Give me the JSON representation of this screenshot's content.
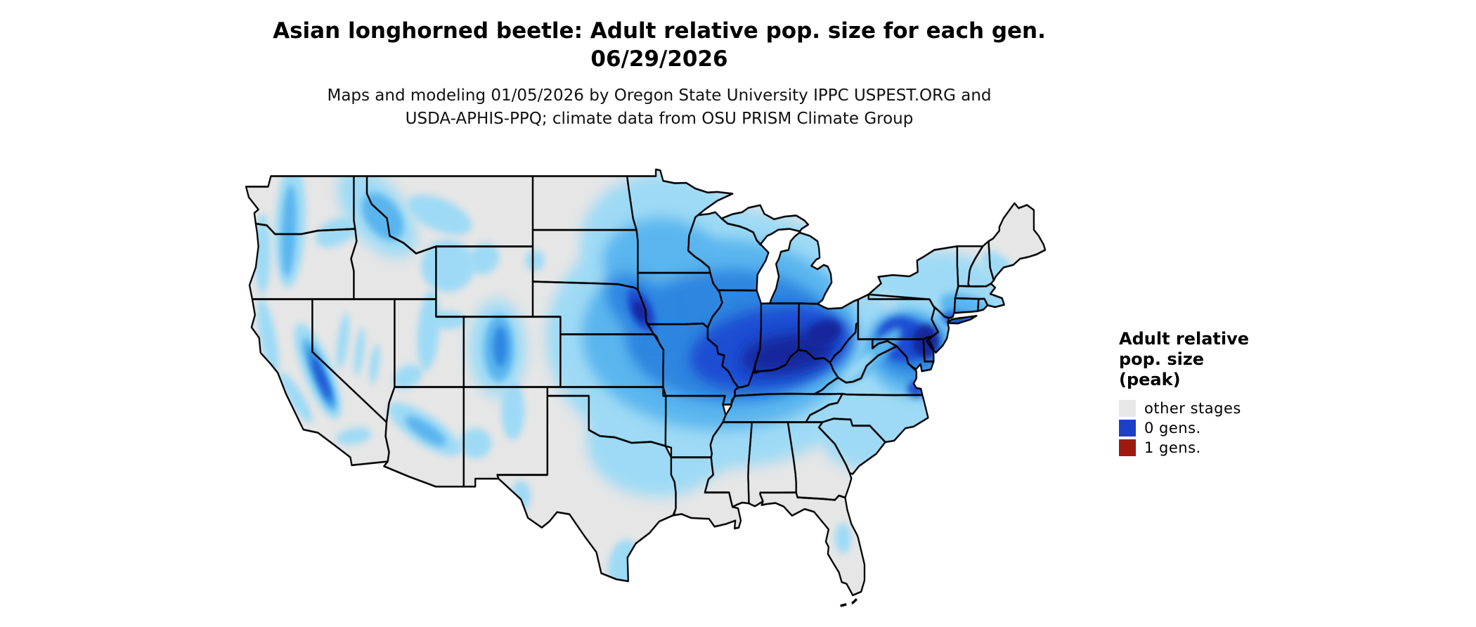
{
  "header": {
    "title_line1": "Asian longhorned beetle: Adult relative pop. size for each gen.",
    "title_line2": "06/29/2026",
    "subtitle_line1": "Maps and modeling 01/05/2026 by Oregon State University IPPC USPEST.ORG and",
    "subtitle_line2": "USDA-APHIS-PPQ; climate data from OSU PRISM Climate Group"
  },
  "legend": {
    "title_line1": "Adult relative",
    "title_line2": "pop. size",
    "title_line3": "(peak)",
    "items": [
      {
        "label": "other stages",
        "color": "#e8e8e8"
      },
      {
        "label": "0 gens.",
        "color": "#1a41c8"
      },
      {
        "label": "1 gens.",
        "color": "#9e1a10"
      }
    ]
  },
  "map": {
    "state_fill": "#e6e6e6",
    "state_border": "#000000",
    "water": "#ffffff",
    "palette": {
      "low": "#9edaf5",
      "low2": "#5ab5ee",
      "mid": "#2f86e0",
      "high": "#1b4ed2",
      "peak": "#12289b"
    }
  }
}
